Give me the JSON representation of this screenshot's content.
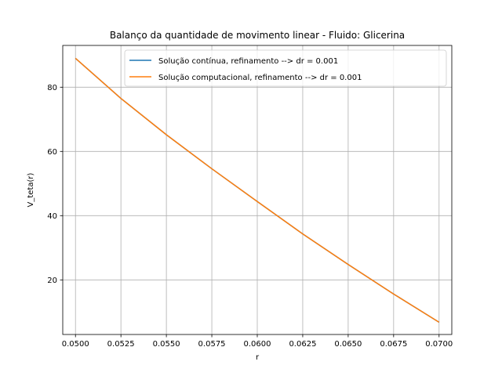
{
  "chart_data": {
    "type": "line",
    "title": "Balanço da quantidade de movimento linear - Fluido: Glicerina",
    "xlabel": "r",
    "ylabel": "V_teta(r)",
    "xlim": [
      0.0493,
      0.0707
    ],
    "ylim": [
      3.0,
      93.0
    ],
    "xticks": [
      0.05,
      0.0525,
      0.055,
      0.0575,
      0.06,
      0.0625,
      0.065,
      0.0675,
      0.07
    ],
    "xtick_labels": [
      "0.0500",
      "0.0525",
      "0.0550",
      "0.0575",
      "0.0600",
      "0.0625",
      "0.0650",
      "0.0675",
      "0.0700"
    ],
    "yticks": [
      20,
      40,
      60,
      80
    ],
    "ytick_labels": [
      "20",
      "40",
      "60",
      "80"
    ],
    "grid": true,
    "legend_position": "top-right",
    "x": [
      0.05,
      0.0525,
      0.055,
      0.0575,
      0.06,
      0.0625,
      0.065,
      0.0675,
      0.07
    ],
    "series": [
      {
        "name": "Solução contínua, refinamento --> dr = 0.001",
        "color": "#1f77b4",
        "values": [
          89.0,
          76.5,
          65.2,
          54.6,
          44.4,
          34.3,
          24.8,
          15.6,
          6.8
        ]
      },
      {
        "name": "Solução computacional, refinamento --> dr = 0.001",
        "color": "#ff7f0e",
        "values": [
          89.0,
          76.5,
          65.2,
          54.6,
          44.4,
          34.3,
          24.8,
          15.6,
          6.8
        ]
      }
    ]
  }
}
